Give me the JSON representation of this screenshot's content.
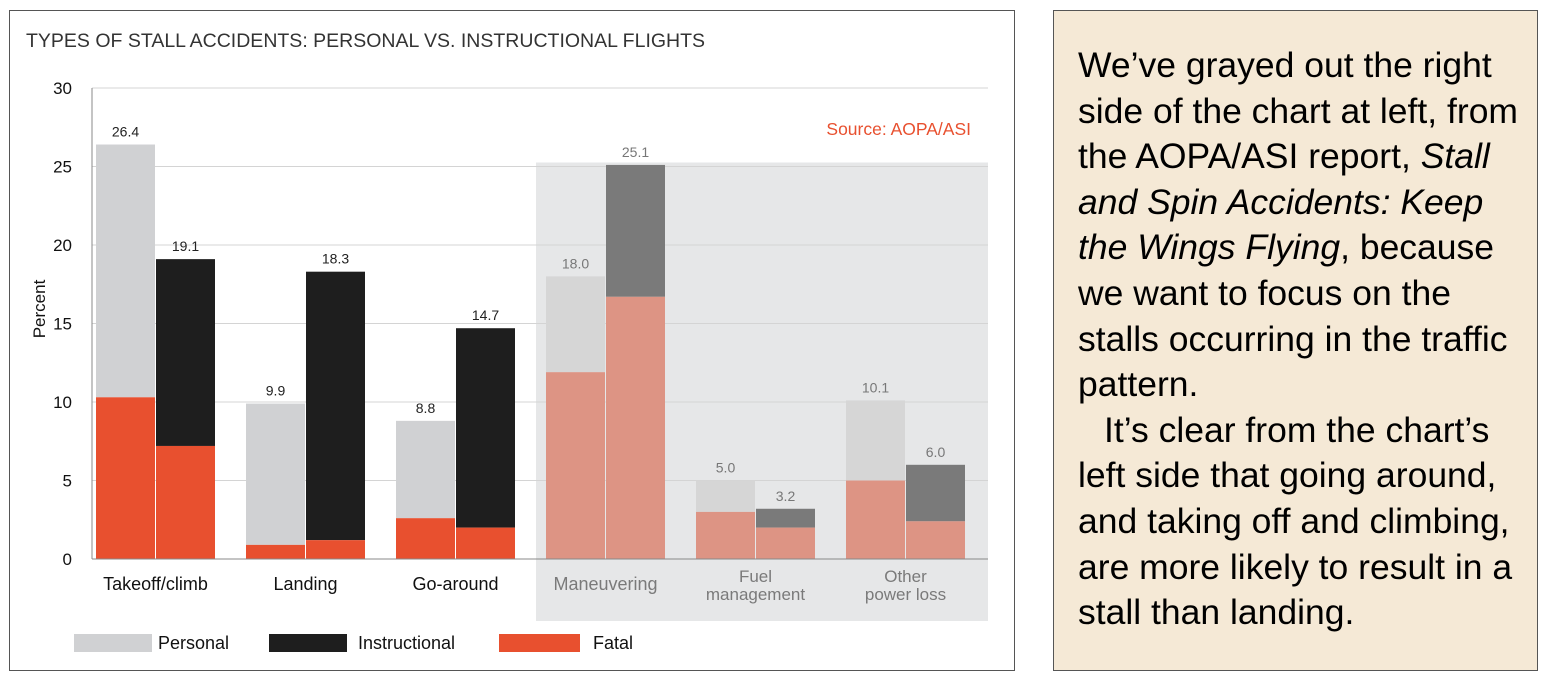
{
  "chart_data": {
    "type": "bar",
    "title": "TYPES OF STALL ACCIDENTS: PERSONAL VS. INSTRUCTIONAL FLIGHTS",
    "source": "Source: AOPA/ASI",
    "ylabel": "Percent",
    "xlabel": "",
    "ylim": [
      0,
      30
    ],
    "yticks": [
      0,
      5,
      10,
      15,
      20,
      25,
      30
    ],
    "grid": true,
    "categories": [
      {
        "label": [
          "Takeoff/climb"
        ],
        "grayed": false
      },
      {
        "label": [
          "Landing"
        ],
        "grayed": false
      },
      {
        "label": [
          "Go-around"
        ],
        "grayed": false
      },
      {
        "label": [
          "Maneuvering"
        ],
        "grayed": true
      },
      {
        "label": [
          "Fuel",
          "management"
        ],
        "grayed": true
      },
      {
        "label": [
          "Other",
          "power loss"
        ],
        "grayed": true
      }
    ],
    "series": [
      {
        "name": "Personal",
        "values": [
          26.4,
          9.9,
          8.8,
          18.0,
          5.0,
          10.1
        ],
        "fatal": [
          10.3,
          0.9,
          2.6,
          11.9,
          3.0,
          5.0
        ],
        "labels": [
          "26.4",
          "9.9",
          "8.8",
          "18.0",
          "5.0",
          "10.1"
        ]
      },
      {
        "name": "Instructional",
        "values": [
          19.1,
          18.3,
          14.7,
          25.1,
          3.2,
          6.0
        ],
        "fatal": [
          7.2,
          1.2,
          2.0,
          16.7,
          2.0,
          2.4
        ],
        "labels": [
          "19.1",
          "18.3",
          "14.7",
          "25.1",
          "3.2",
          "6.0"
        ]
      }
    ],
    "legend": [
      {
        "name": "Personal",
        "color": "#d0d1d3"
      },
      {
        "name": "Instructional",
        "color": "#1e1e1e"
      },
      {
        "name": "Fatal",
        "color": "#e8502f"
      }
    ],
    "legend_position": "bottom-left",
    "colors": {
      "personal": "#d0d1d3",
      "instructional": "#1e1e1e",
      "fatal": "#e8502f",
      "personal_grayed": "#d6d6d6",
      "instructional_grayed": "#7a7a7a",
      "fatal_grayed": "#dd9484",
      "grayed_background": "#e6e7e8",
      "source_text": "#e8502f",
      "title_text": "#333333"
    }
  },
  "note": {
    "segments": [
      {
        "text": "We’ve grayed out the right side of the chart at left, from the AOPA/ASI report, ",
        "italic": false,
        "paragraph": 1
      },
      {
        "text": "Stall and Spin Accidents: Keep the Wings Flying",
        "italic": true,
        "paragraph": 1
      },
      {
        "text": ", because we want to focus on the stalls occurring in the traffic pattern.",
        "italic": false,
        "paragraph": 1
      },
      {
        "text": "It’s clear from the chart’s left side that going around, and taking off and climbing, are more likely to result in a stall than landing.",
        "italic": false,
        "paragraph": 2
      }
    ]
  }
}
